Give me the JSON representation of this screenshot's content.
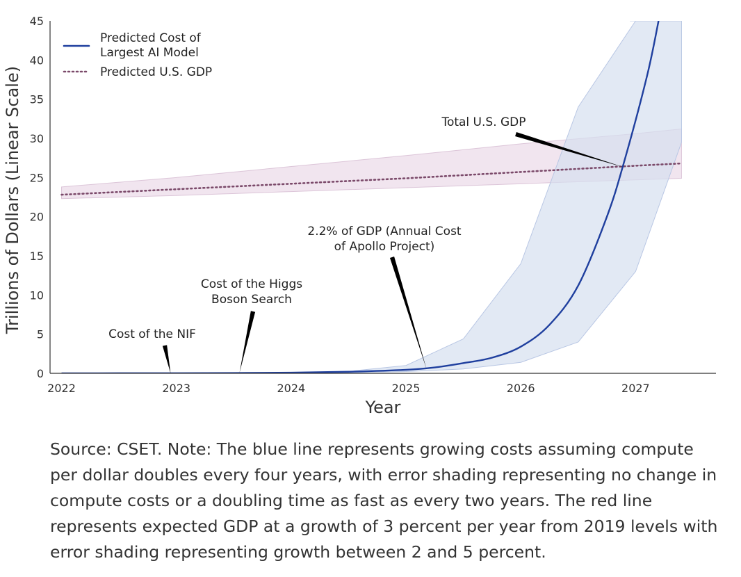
{
  "chart_data": {
    "type": "line",
    "xlabel": "Year",
    "ylabel": "Trillions of Dollars (Linear Scale)",
    "xlim": [
      2021.9,
      2027.7
    ],
    "ylim": [
      0,
      45
    ],
    "xticks": [
      2022,
      2023,
      2024,
      2025,
      2026,
      2027
    ],
    "yticks": [
      0,
      5,
      10,
      15,
      20,
      25,
      30,
      35,
      40,
      45
    ],
    "grid": false,
    "legend_position": "top-left",
    "series": [
      {
        "name": "Predicted Cost of Largest AI Model",
        "legend_lines": [
          "Predicted Cost of",
          "Largest AI Model"
        ],
        "color": "#1f3f9e",
        "style": "solid",
        "x": [
          2022.0,
          2022.5,
          2023.0,
          2023.5,
          2024.0,
          2024.5,
          2025.0,
          2025.25,
          2025.5,
          2025.75,
          2026.0,
          2026.25,
          2026.5,
          2026.75,
          2026.9,
          2027.1,
          2027.2
        ],
        "y": [
          0.0,
          0.01,
          0.02,
          0.04,
          0.08,
          0.2,
          0.45,
          0.75,
          1.3,
          2.0,
          3.4,
          6.2,
          11.2,
          20.0,
          27.0,
          38.0,
          45.0
        ],
        "band_x": [
          2026.95,
          2027.0,
          2026.5,
          2026.0,
          2025.5,
          2025.0,
          2024.5,
          2024.0,
          2023.5,
          2023.0,
          2022.5,
          2022.0,
          2022.5,
          2023.0,
          2023.5,
          2024.0,
          2024.5,
          2025.0,
          2025.5,
          2026.0,
          2026.5,
          2027.0,
          2027.4,
          2027.4
        ],
        "band_y": [
          45,
          45,
          34,
          14,
          4.4,
          1.0,
          0.25,
          0.07,
          0.03,
          0.01,
          0.0,
          0.0,
          0.0,
          0.01,
          0.02,
          0.04,
          0.1,
          0.22,
          0.55,
          1.4,
          4.0,
          13.0,
          29.5,
          45
        ]
      },
      {
        "name": "Predicted U.S. GDP",
        "legend_lines": [
          "Predicted U.S. GDP"
        ],
        "color": "#7b4a6a",
        "style": "dotted",
        "x": [
          2022.0,
          2023.0,
          2024.0,
          2025.0,
          2026.0,
          2027.0,
          2027.4
        ],
        "y": [
          22.8,
          23.5,
          24.2,
          24.9,
          25.7,
          26.5,
          26.8
        ],
        "band_upper": [
          23.8,
          25.0,
          26.4,
          27.8,
          29.3,
          30.6,
          31.2
        ],
        "band_lower": [
          22.3,
          22.7,
          23.2,
          23.7,
          24.2,
          24.7,
          24.9
        ]
      }
    ],
    "annotations": [
      {
        "name": "nif",
        "lines": [
          "Cost of the NIF"
        ],
        "x": 2022.95,
        "y": 0.0
      },
      {
        "name": "higgs",
        "lines": [
          "Cost of the Higgs",
          "Boson Search"
        ],
        "x": 2023.55,
        "y": 0.05
      },
      {
        "name": "apollo",
        "lines": [
          "2.2% of GDP (Annual Cost",
          "of Apollo Project)"
        ],
        "x": 2025.18,
        "y": 0.5
      },
      {
        "name": "gdp",
        "lines": [
          "Total U.S. GDP"
        ],
        "x": 2026.9,
        "y": 26.3
      }
    ]
  },
  "caption": "Source: CSET. Note: The blue line represents growing costs assuming compute per dollar doubles every four years, with error shading representing no change in compute costs or a doubling time as fast as every two years. The red line represents expected GDP at a growth of 3 percent per year from 2019 levels with error shading representing growth between 2 and 5 percent.",
  "colors": {
    "ai_band": "#d6dff0",
    "gdp_band": "#ecdcea",
    "axis": "#333333"
  }
}
